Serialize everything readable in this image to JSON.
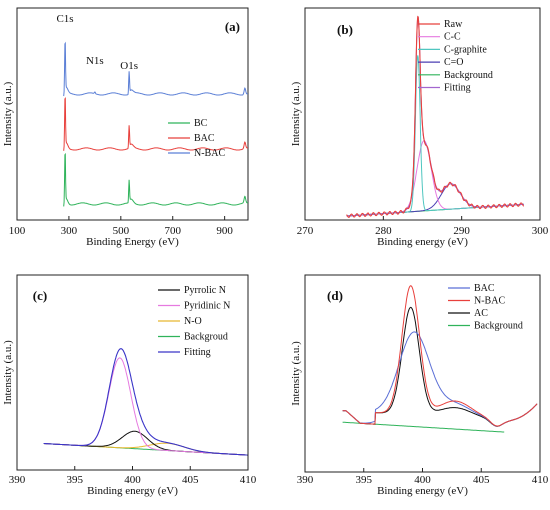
{
  "chart_data": [
    {
      "type": "line",
      "panel_label": "(a)",
      "xlabel": "Binding Energy (eV)",
      "ylabel": "Intensity (a.u.)",
      "xlim": [
        100,
        990
      ],
      "xticks": [
        "100",
        "300",
        "500",
        "700",
        "900"
      ],
      "legend_position": "center-right",
      "annotations": [
        {
          "text": "C1s",
          "x": 285
        },
        {
          "text": "N1s",
          "x": 400
        },
        {
          "text": "O1s",
          "x": 532
        }
      ],
      "series": [
        {
          "name": "N-BAC",
          "color": "#5b7fd6",
          "offset": 2.05
        },
        {
          "name": "BAC",
          "color": "#e8403c",
          "offset": 1.05
        },
        {
          "name": "BC",
          "color": "#2fb35a",
          "offset": 0.05
        }
      ]
    },
    {
      "type": "line",
      "panel_label": "(b)",
      "xlabel": "Binding energy (eV)",
      "ylabel": "Intensity (a.u.)",
      "xlim": [
        270,
        300
      ],
      "xticks": [
        "270",
        "280",
        "290",
        "300"
      ],
      "legend_position": "top-right",
      "baseline": {
        "x": [
          275.3,
          298
        ],
        "y": [
          0.0,
          0.06
        ]
      },
      "components": [
        {
          "name": "Raw",
          "color": "#e8403c",
          "center": 284.4,
          "height": 0.95,
          "width": 0.45
        },
        {
          "name": "C-C",
          "color": "#e67ae0",
          "center": 285.2,
          "height": 0.36,
          "width": 0.9
        },
        {
          "name": "C-graphite",
          "color": "#4fc6c0",
          "center": 284.4,
          "height": 0.8,
          "width": 0.3
        },
        {
          "name": "C=O",
          "color": "#4b3fb3",
          "center": 288.6,
          "height": 0.13,
          "width": 1.2
        },
        {
          "name": "Background",
          "color": "#2fb35a",
          "center": null,
          "height": 0,
          "width": 0
        },
        {
          "name": "Fitting",
          "color": "#a366cf",
          "center": 284.4,
          "height": 0.95,
          "width": 0.45
        }
      ]
    },
    {
      "type": "line",
      "panel_label": "(c)",
      "xlabel": "Binding energy (eV)",
      "ylabel": "Intensity (a.u.)",
      "xlim": [
        390,
        410
      ],
      "xticks": [
        "390",
        "395",
        "400",
        "405",
        "410"
      ],
      "legend_position": "top-right",
      "baseline": {
        "x": [
          392.3,
          410
        ],
        "y": [
          0.1,
          0.02
        ]
      },
      "components": [
        {
          "name": "Pyrrolic N",
          "color": "#111111",
          "center": 400.2,
          "height": 0.12,
          "width": 1.1
        },
        {
          "name": "Pyridinic N",
          "color": "#e67ae0",
          "center": 398.9,
          "height": 0.62,
          "width": 0.95
        },
        {
          "name": "N-O",
          "color": "#e8b830",
          "center": 403.0,
          "height": 0.05,
          "width": 1.5
        },
        {
          "name": "Backgroud",
          "color": "#2fb35a",
          "center": null,
          "height": 0,
          "width": 0
        },
        {
          "name": "Fitting",
          "color": "#3a35c8",
          "center": 399.0,
          "height": 0.7,
          "width": 1.0
        }
      ]
    },
    {
      "type": "line",
      "panel_label": "(d)",
      "xlabel": "Binding energy (eV)",
      "ylabel": "Intensity (a.u.)",
      "xlim": [
        390,
        410
      ],
      "xticks": [
        "390",
        "395",
        "400",
        "405",
        "410"
      ],
      "legend_position": "top-right",
      "baseline": {
        "x": [
          393.2,
          407
        ],
        "y": [
          0.12,
          0.06
        ]
      },
      "series": [
        {
          "name": "BAC",
          "color": "#5b6fd6",
          "center": 399.3,
          "height": 0.5,
          "width": 1.3
        },
        {
          "name": "N-BAC",
          "color": "#e8403c",
          "center": 399.0,
          "height": 0.78,
          "width": 0.75
        },
        {
          "name": "AC",
          "color": "#111111",
          "center": 399.0,
          "height": 0.65,
          "width": 0.72
        },
        {
          "name": "Background",
          "color": "#2fb35a",
          "center": null,
          "height": 0,
          "width": 0
        }
      ]
    }
  ]
}
